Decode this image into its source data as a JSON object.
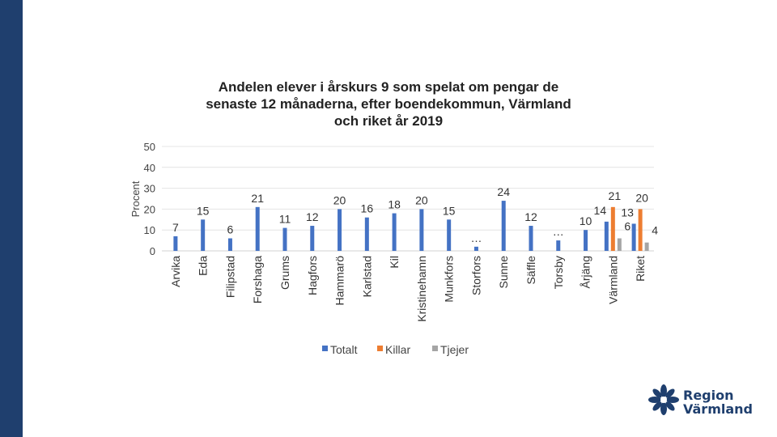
{
  "theme": {
    "side_bar_color": "#1f3f6e",
    "totalt_color": "#4472c4",
    "killar_color": "#ed7d31",
    "tjejer_color": "#a5a5a5"
  },
  "logo": {
    "text": "Region\nVärmland",
    "icon": "flower-icon"
  },
  "chart_data": {
    "type": "bar",
    "title": "Andelen elever i årskurs 9 som spelat om pengar de\nsenaste 12 månaderna, efter boendekommun, Värmland\noch riket år 2019",
    "ylabel": "Procent",
    "xlabel": "",
    "ylim": [
      0,
      50
    ],
    "yticks": [
      0,
      10,
      20,
      30,
      40,
      50
    ],
    "grid": true,
    "legend": "bottom",
    "categories": [
      "Arvika",
      "Eda",
      "Filipstad",
      "Forshaga",
      "Grums",
      "Hagfors",
      "Hammarö",
      "Karlstad",
      "Kil",
      "Kristinehamn",
      "Munkfors",
      "Storfors",
      "Sunne",
      "Säffle",
      "Torsby",
      "Årjäng",
      "Värmland",
      "Riket"
    ],
    "series": [
      {
        "name": "Totalt",
        "values": [
          7,
          15,
          6,
          21,
          11,
          12,
          20,
          16,
          18,
          20,
          15,
          2,
          24,
          12,
          5,
          10,
          14,
          13
        ],
        "labels": [
          "7",
          "15",
          "6",
          "21",
          "11",
          "12",
          "20",
          "16",
          "18",
          "20",
          "15",
          "…",
          "24",
          "12",
          "…",
          "10",
          "14",
          "13"
        ]
      },
      {
        "name": "Killar",
        "values": [
          null,
          null,
          null,
          null,
          null,
          null,
          null,
          null,
          null,
          null,
          null,
          null,
          null,
          null,
          null,
          null,
          21,
          20
        ],
        "labels": [
          "",
          "",
          "",
          "",
          "",
          "",
          "",
          "",
          "",
          "",
          "",
          "",
          "",
          "",
          "",
          "",
          "21",
          "20"
        ]
      },
      {
        "name": "Tjejer",
        "values": [
          null,
          null,
          null,
          null,
          null,
          null,
          null,
          null,
          null,
          null,
          null,
          null,
          null,
          null,
          null,
          null,
          6,
          4
        ],
        "labels": [
          "",
          "",
          "",
          "",
          "",
          "",
          "",
          "",
          "",
          "",
          "",
          "",
          "",
          "",
          "",
          "",
          "6",
          "4"
        ]
      }
    ]
  }
}
